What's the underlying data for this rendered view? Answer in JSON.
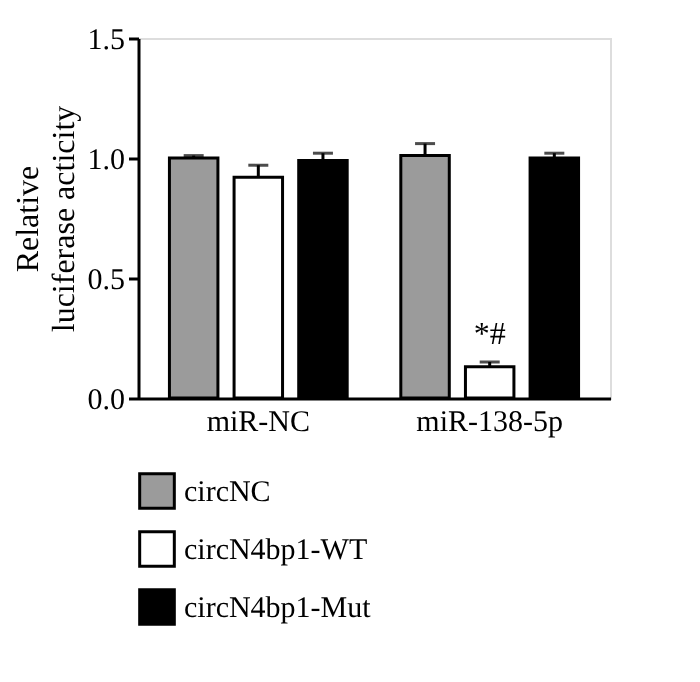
{
  "chart_data": {
    "type": "bar",
    "ylabel": "Relative luciferase acticity",
    "categories": [
      "miR-NC",
      "miR-138-5p"
    ],
    "series": [
      {
        "name": "circNC",
        "color": "#9b9b9b",
        "values": [
          1.0,
          1.01
        ],
        "errors": [
          0.01,
          0.05
        ]
      },
      {
        "name": "circN4bp1-WT",
        "color": "#ffffff",
        "values": [
          0.92,
          0.13
        ],
        "errors": [
          0.05,
          0.02
        ]
      },
      {
        "name": "circN4bp1-Mut",
        "color": "#000000",
        "values": [
          0.99,
          1.0
        ],
        "errors": [
          0.03,
          0.02
        ]
      }
    ],
    "ylim": [
      0,
      1.5
    ],
    "yticks": [
      {
        "value": 0,
        "label": "0.0"
      },
      {
        "value": 0.5,
        "label": "0.5"
      },
      {
        "value": 1.0,
        "label": "1.0"
      },
      {
        "value": 1.5,
        "label": "1.5"
      }
    ],
    "annotations": [
      {
        "text": "*#",
        "x": "miR-138-5p",
        "y": 0.2
      }
    ],
    "grid": false,
    "legend": "bottom"
  }
}
